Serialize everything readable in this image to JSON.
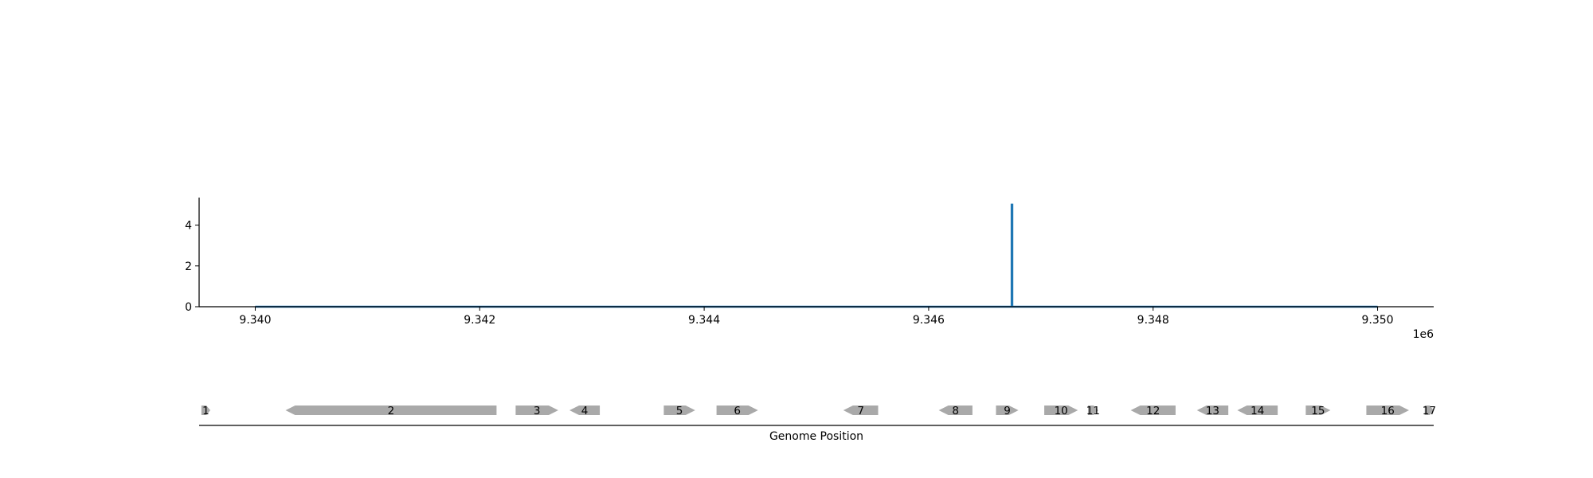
{
  "chart_data": [
    {
      "type": "line",
      "title": "",
      "xlabel": "",
      "ylabel": "",
      "x_offset_label": "1e6",
      "xlim": [
        9339500,
        9350500
      ],
      "ylim": [
        0,
        5.35
      ],
      "xticks": [
        9340000,
        9342000,
        9344000,
        9346000,
        9348000,
        9350000
      ],
      "xtick_labels": [
        "9.340",
        "9.342",
        "9.344",
        "9.346",
        "9.348",
        "9.350"
      ],
      "yticks": [
        0,
        2,
        4
      ],
      "ytick_labels": [
        "0",
        "2",
        "4"
      ],
      "grid": false,
      "color": "#1f77b4",
      "series": [
        {
          "name": "",
          "x": [
            9340000,
            9346740,
            9346740,
            9346745,
            9346745,
            9350000
          ],
          "y": [
            0,
            0,
            5,
            5,
            0,
            0
          ]
        }
      ]
    },
    {
      "type": "gene_track",
      "xlabel": "Genome Position",
      "xlim": [
        9339500,
        9350500
      ],
      "color": "#a9a9a9",
      "genes": [
        {
          "label": "1",
          "start": 9339520,
          "end": 9339600,
          "strand": "+"
        },
        {
          "label": "2",
          "start": 9340270,
          "end": 9342150,
          "strand": "-"
        },
        {
          "label": "3",
          "start": 9342320,
          "end": 9342700,
          "strand": "+"
        },
        {
          "label": "4",
          "start": 9342800,
          "end": 9343070,
          "strand": "-"
        },
        {
          "label": "5",
          "start": 9343640,
          "end": 9343920,
          "strand": "+"
        },
        {
          "label": "6",
          "start": 9344110,
          "end": 9344480,
          "strand": "+"
        },
        {
          "label": "7",
          "start": 9345240,
          "end": 9345550,
          "strand": "-"
        },
        {
          "label": "8",
          "start": 9346090,
          "end": 9346390,
          "strand": "-"
        },
        {
          "label": "9",
          "start": 9346600,
          "end": 9346800,
          "strand": "+"
        },
        {
          "label": "10",
          "start": 9347030,
          "end": 9347330,
          "strand": "+"
        },
        {
          "label": "11",
          "start": 9347420,
          "end": 9347510,
          "strand": "+"
        },
        {
          "label": "12",
          "start": 9347800,
          "end": 9348200,
          "strand": "-"
        },
        {
          "label": "13",
          "start": 9348390,
          "end": 9348670,
          "strand": "-"
        },
        {
          "label": "14",
          "start": 9348750,
          "end": 9349110,
          "strand": "-"
        },
        {
          "label": "15",
          "start": 9349360,
          "end": 9349580,
          "strand": "+"
        },
        {
          "label": "16",
          "start": 9349900,
          "end": 9350280,
          "strand": "+"
        },
        {
          "label": "17",
          "start": 9350420,
          "end": 9350500,
          "strand": "+"
        }
      ]
    }
  ]
}
